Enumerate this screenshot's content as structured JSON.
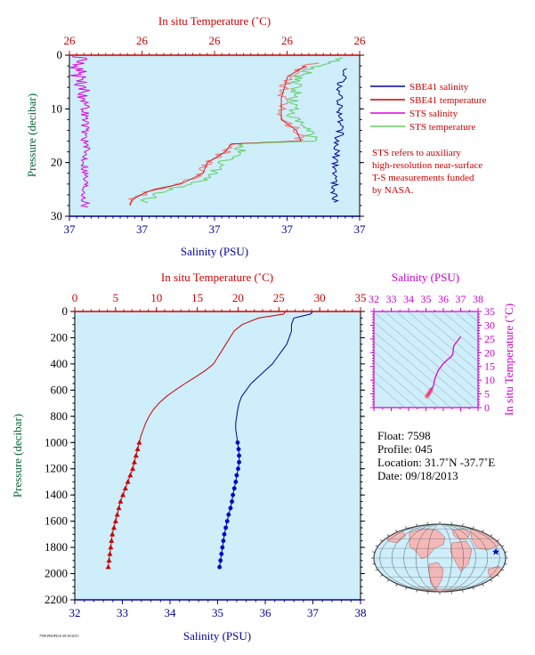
{
  "colors": {
    "panel_bg": "#cdeefa",
    "temperature": "#cc0000",
    "salinity": "#000099",
    "sts_salinity": "#dd00dd",
    "sts_temperature": "#66cc66",
    "sbe41_temp_shade": "#f08080",
    "ts_axis": "#cc00cc",
    "pressure_label": "#006633"
  },
  "chart_data": [
    {
      "id": "near-surface",
      "type": "line",
      "x_top_label": "In situ Temperature (˚C)",
      "x_top_ticks": [
        "26",
        "26",
        "26",
        "26",
        "26"
      ],
      "x_bottom_label": "Salinity (PSU)",
      "x_bottom_ticks": [
        "37",
        "37",
        "37",
        "37",
        "37"
      ],
      "ylabel": "Pressure (decibar)",
      "ylim": [
        30,
        0
      ],
      "y_ticks": [
        0,
        10,
        20,
        30
      ],
      "legend": [
        "SBE41 salinity",
        "SBE41 temperature",
        "STS salinity",
        "STS temperature"
      ],
      "note": [
        "STS refers to auxiliary",
        "high-resolution near-surface",
        "T-S measurements funded",
        "by NASA."
      ]
    },
    {
      "id": "full-profile",
      "type": "line",
      "x_top_label": "In situ Temperature (˚C)",
      "x_top_lim": [
        0,
        35
      ],
      "x_top_ticks": [
        0,
        5,
        10,
        15,
        20,
        25,
        30,
        35
      ],
      "x_bottom_label": "Salinity (PSU)",
      "x_bottom_lim": [
        32,
        38
      ],
      "x_bottom_ticks": [
        32,
        33,
        34,
        35,
        36,
        37,
        38
      ],
      "ylabel": "Pressure (decibar)",
      "ylim": [
        2200,
        0
      ],
      "y_ticks": [
        0,
        200,
        400,
        600,
        800,
        1000,
        1200,
        1400,
        1600,
        1800,
        2000,
        2200
      ],
      "temperature": {
        "pressure": [
          0,
          20,
          50,
          100,
          150,
          200,
          250,
          300,
          350,
          400,
          450,
          500,
          550,
          600,
          650,
          700,
          750,
          800,
          850,
          900,
          950,
          1000,
          1050,
          1100,
          1150,
          1200,
          1250,
          1300,
          1350,
          1400,
          1450,
          1500,
          1550,
          1600,
          1650,
          1700,
          1750,
          1800,
          1850,
          1900,
          1950
        ],
        "values": [
          25.8,
          25.6,
          22.5,
          20.5,
          19.5,
          19.0,
          18.5,
          18.0,
          17.5,
          17.0,
          16.0,
          14.8,
          13.5,
          12.3,
          11.2,
          10.3,
          9.6,
          9.1,
          8.7,
          8.4,
          8.1,
          7.9,
          7.7,
          7.5,
          7.3,
          7.1,
          6.8,
          6.5,
          6.2,
          5.9,
          5.6,
          5.4,
          5.2,
          5.0,
          4.8,
          4.6,
          4.5,
          4.4,
          4.3,
          4.2,
          4.1
        ],
        "markers_from_pressure": 1000
      },
      "salinity": {
        "pressure": [
          0,
          20,
          50,
          100,
          150,
          200,
          250,
          300,
          350,
          400,
          450,
          500,
          550,
          600,
          650,
          700,
          750,
          800,
          850,
          900,
          950,
          1000,
          1050,
          1100,
          1150,
          1200,
          1250,
          1300,
          1350,
          1400,
          1450,
          1500,
          1550,
          1600,
          1650,
          1700,
          1750,
          1800,
          1850,
          1900,
          1950
        ],
        "values": [
          37.0,
          36.95,
          36.6,
          36.55,
          36.55,
          36.5,
          36.45,
          36.35,
          36.25,
          36.15,
          36.0,
          35.85,
          35.7,
          35.6,
          35.5,
          35.45,
          35.42,
          35.4,
          35.38,
          35.38,
          35.4,
          35.42,
          35.44,
          35.45,
          35.45,
          35.43,
          35.4,
          35.38,
          35.35,
          35.32,
          35.3,
          35.27,
          35.23,
          35.2,
          35.17,
          35.14,
          35.12,
          35.1,
          35.08,
          35.06,
          35.04
        ],
        "markers_from_pressure": 1000
      }
    },
    {
      "id": "ts-diagram",
      "type": "line",
      "x_top_label": "Salinity (PSU)",
      "xlim": [
        32,
        38
      ],
      "x_ticks": [
        32,
        33,
        34,
        35,
        36,
        37,
        38
      ],
      "ylabel": "In situ Temperature (˚C)",
      "ylim": [
        0,
        35
      ],
      "y_ticks": [
        0,
        5,
        10,
        15,
        20,
        25,
        30,
        35
      ],
      "salinity": [
        35.05,
        35.1,
        35.2,
        35.3,
        35.4,
        35.45,
        35.5,
        35.7,
        36.0,
        36.25,
        36.45,
        36.55,
        36.6,
        37.0
      ],
      "temperature": [
        4.1,
        4.5,
        5.4,
        6.5,
        7.5,
        8.4,
        10.3,
        13.5,
        16.0,
        17.5,
        18.5,
        19.5,
        22.5,
        25.8
      ]
    }
  ],
  "info": {
    "float": "Float:  7598",
    "profile": "Profile:  045",
    "location": "Location:  31.7˚N  -37.7˚E",
    "date": "Date:  09/18/2013"
  },
  "footer_code": "7598 PROFILE 09/18/2013",
  "map": {
    "marker": "star",
    "location_lat": 31.7,
    "location_lon": -37.7
  }
}
